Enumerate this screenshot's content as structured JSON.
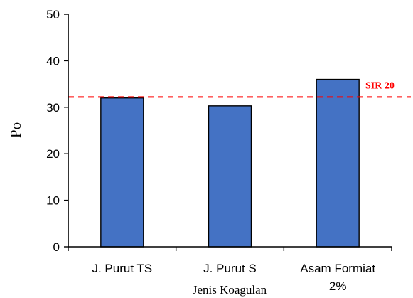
{
  "chart_data": {
    "type": "bar",
    "title": "",
    "xlabel": "Jenis Koagulan",
    "ylabel": "Po",
    "ylim": [
      0,
      50
    ],
    "yticks": [
      "0",
      "10",
      "20",
      "30",
      "40",
      "50"
    ],
    "categories": [
      [
        "J. Purut TS"
      ],
      [
        "J. Purut S"
      ],
      [
        "Asam Formiat",
        "2%"
      ]
    ],
    "series": [
      {
        "values": [
          32,
          30.3,
          36
        ]
      }
    ],
    "bar_color": "#4472c4",
    "reference_line": {
      "value": 32.2,
      "label": "SIR 20",
      "color": "#ff0000",
      "style": "dashed"
    },
    "grid": false,
    "legend": "none"
  }
}
